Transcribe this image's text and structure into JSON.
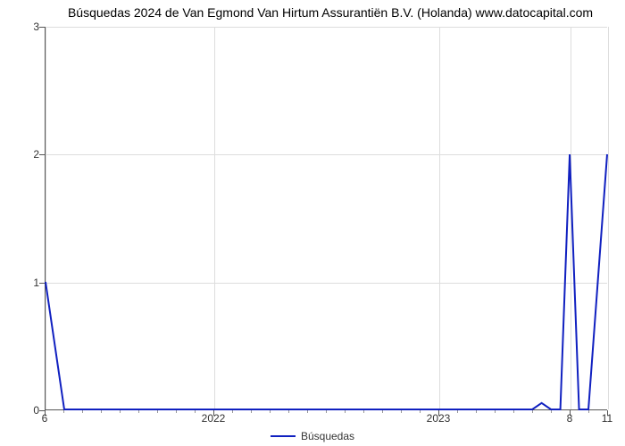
{
  "chart": {
    "type": "line",
    "title": "Búsquedas 2024 de Van Egmond Van Hirtum Assurantiën B.V. (Holanda) www.datocapital.com",
    "title_fontsize": 14,
    "background_color": "#ffffff",
    "grid_color": "#dddddd",
    "axis_color": "#555555",
    "line_color": "#1020c0",
    "line_width": 2,
    "x": {
      "min": 0,
      "max": 60,
      "major_ticks": [
        {
          "pos": 0,
          "label": "6"
        },
        {
          "pos": 18,
          "label": "2022"
        },
        {
          "pos": 42,
          "label": "2023"
        },
        {
          "pos": 56,
          "label": "8"
        },
        {
          "pos": 60,
          "label": "11"
        }
      ],
      "minor_step": 2,
      "label_fontsize": 12
    },
    "y": {
      "min": 0,
      "max": 3,
      "ticks": [
        0,
        1,
        2,
        3
      ],
      "label_fontsize": 12
    },
    "series": [
      {
        "name": "Búsquedas",
        "color": "#1020c0",
        "points": [
          [
            0,
            1.0
          ],
          [
            2,
            0.0
          ],
          [
            52,
            0.0
          ],
          [
            53,
            0.05
          ],
          [
            54,
            0.0
          ],
          [
            55,
            0.0
          ],
          [
            56,
            2.0
          ],
          [
            57,
            0.0
          ],
          [
            58,
            0.0
          ],
          [
            60,
            2.0
          ]
        ]
      }
    ],
    "legend": {
      "position": "bottom-center",
      "label": "Búsquedas",
      "fontsize": 12
    }
  }
}
